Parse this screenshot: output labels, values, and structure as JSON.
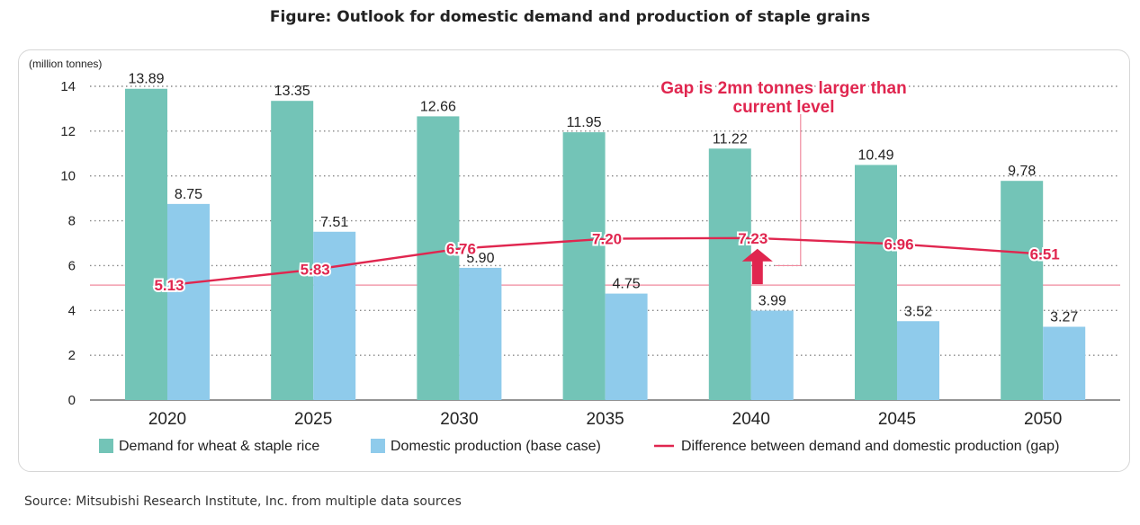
{
  "title": "Figure: Outlook for domestic demand and production of staple grains",
  "source": "Source: Mitsubishi Research Institute, Inc. from multiple data sources",
  "colors": {
    "demand": "#73c4b7",
    "production": "#8fcbeb",
    "gap": "#e0264f",
    "reference_line": "#f08a9e",
    "grid": "#888888"
  },
  "chart_data": {
    "type": "bar",
    "ylabel": "(million tonnes)",
    "ylim": [
      0,
      14
    ],
    "yticks": [
      "0",
      "2",
      "4",
      "6",
      "8",
      "10",
      "12",
      "14"
    ],
    "grid": true,
    "legend_position": "bottom",
    "categories": [
      "2020",
      "2025",
      "2030",
      "2035",
      "2040",
      "2045",
      "2050"
    ],
    "series": [
      {
        "name": "Demand for wheat & staple rice",
        "kind": "bar",
        "values": [
          13.89,
          13.35,
          12.66,
          11.95,
          11.22,
          10.49,
          9.78
        ],
        "labels": [
          "13.89",
          "13.35",
          "12.66",
          "11.95",
          "11.22",
          "10.49",
          "9.78"
        ]
      },
      {
        "name": "Domestic production (base case)",
        "kind": "bar",
        "values": [
          8.75,
          7.51,
          5.9,
          4.75,
          3.99,
          3.52,
          3.27
        ],
        "labels": [
          "8.75",
          "7.51",
          "5.90",
          "4.75",
          "3.99",
          "3.52",
          "3.27"
        ]
      },
      {
        "name": "Difference between demand and domestic production (gap)",
        "kind": "line",
        "values": [
          5.13,
          5.83,
          6.76,
          7.2,
          7.23,
          6.96,
          6.51
        ],
        "labels": [
          "5.13",
          "5.83",
          "6.76",
          "7.20",
          "7.23",
          "6.96",
          "6.51"
        ]
      }
    ],
    "reference_line_value": 5.13,
    "annotation": {
      "lines": [
        "Gap is 2mn tonnes larger than",
        "current level"
      ],
      "category": "2040"
    }
  }
}
